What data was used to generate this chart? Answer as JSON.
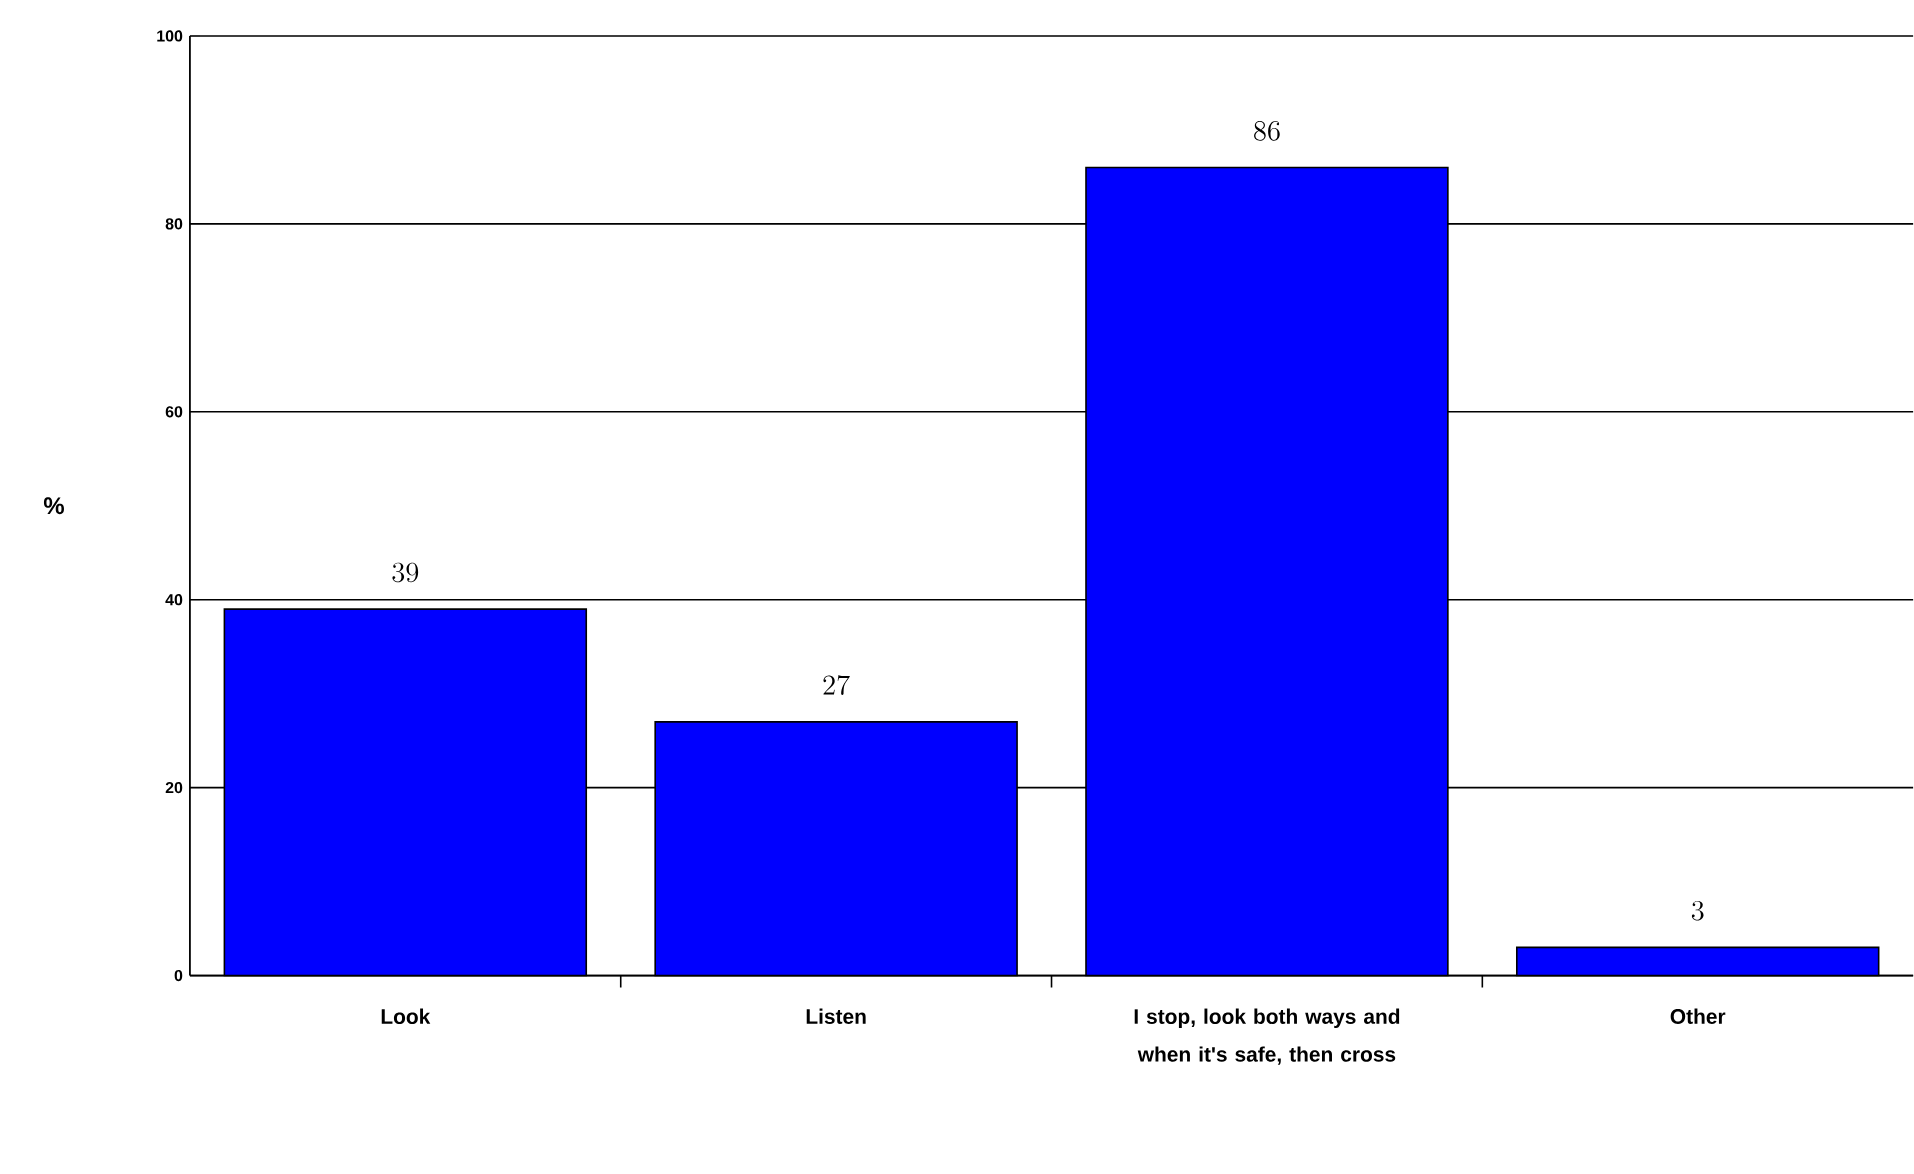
{
  "chart_data": {
    "type": "bar",
    "ylabel": "%",
    "categories": [
      "Look",
      "Listen",
      "I stop, look both ways and when it's safe, then cross",
      "Other"
    ],
    "values": [
      39,
      27,
      86,
      3
    ],
    "color": "#0000ff",
    "ylim": [
      0,
      100
    ],
    "yticks": [
      0,
      20,
      40,
      60,
      80,
      100
    ],
    "grid": "y",
    "data_labels": true
  }
}
